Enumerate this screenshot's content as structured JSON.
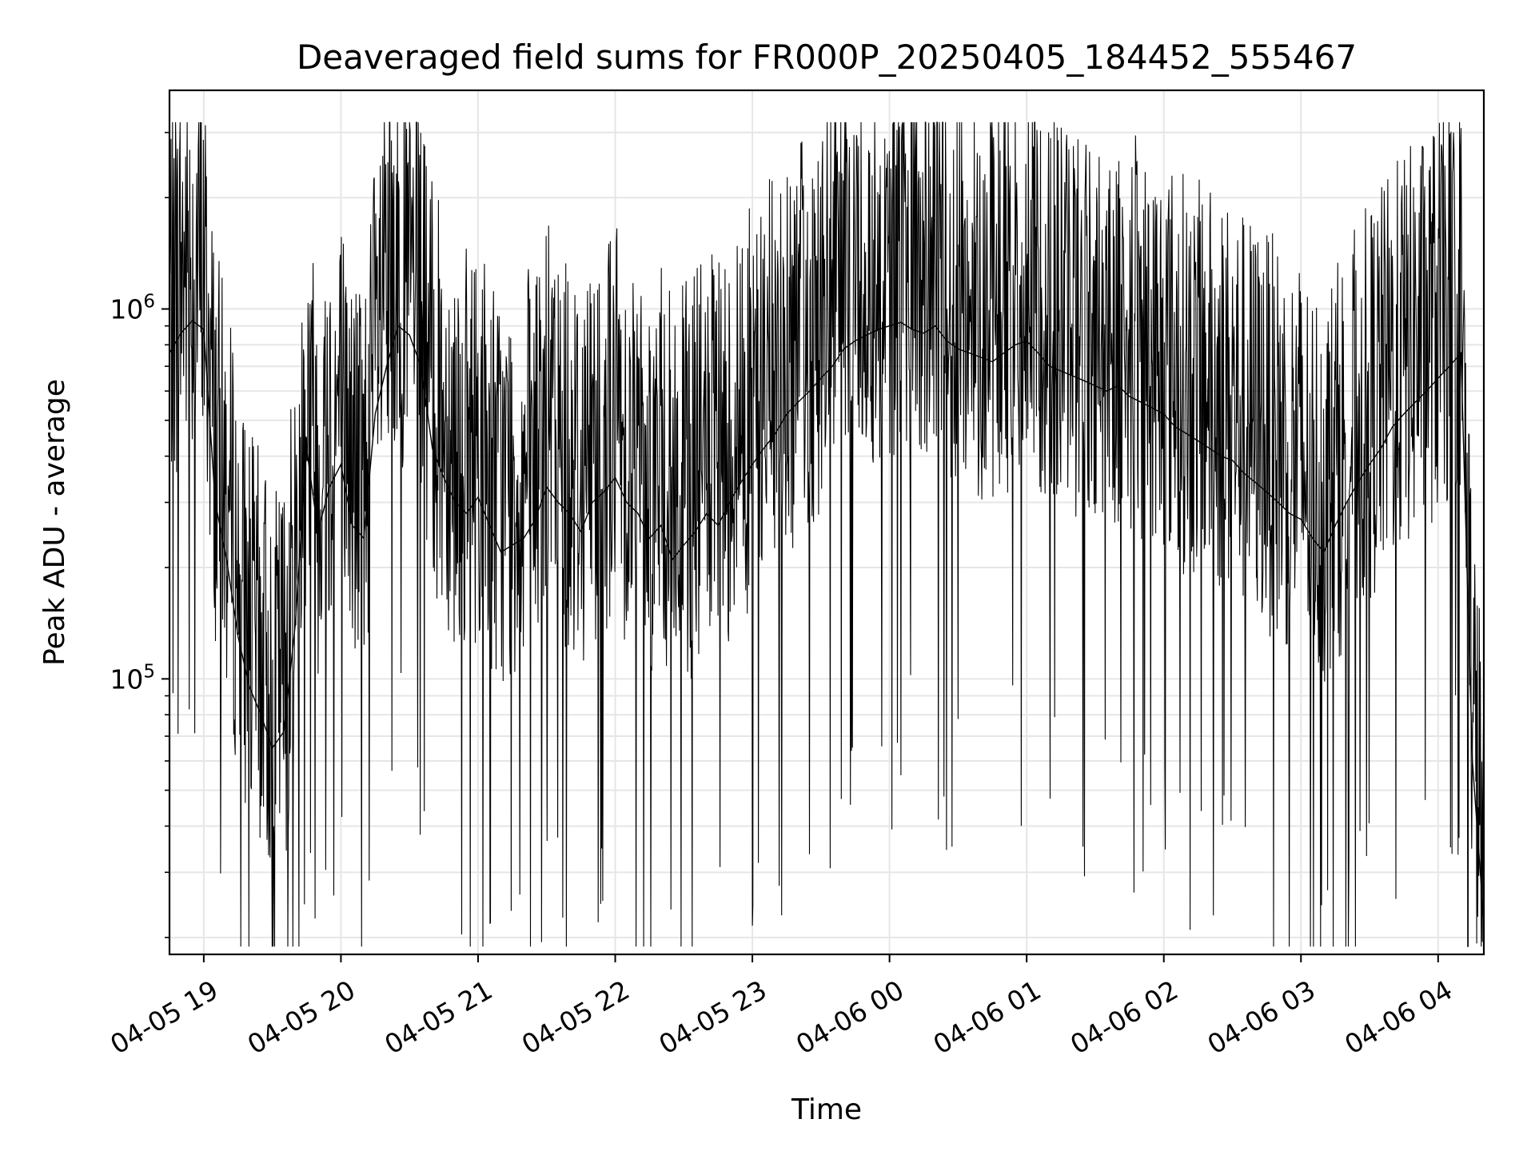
{
  "chart_data": {
    "type": "line",
    "title": "Deaveraged field sums for FR000P_20250405_184452_555467",
    "xlabel": "Time",
    "ylabel": "Peak ADU - average",
    "y_scale": "log",
    "ylim": [
      18000,
      3900000
    ],
    "xlim": [
      "2025-04-05 18:45",
      "2025-04-06 04:20"
    ],
    "grid": true,
    "line_color": "#000000",
    "grid_color": "#e6e6e6",
    "x_ticks": [
      {
        "value": "2025-04-05 19:00",
        "label": "04-05 19"
      },
      {
        "value": "2025-04-05 20:00",
        "label": "04-05 20"
      },
      {
        "value": "2025-04-05 21:00",
        "label": "04-05 21"
      },
      {
        "value": "2025-04-05 22:00",
        "label": "04-05 22"
      },
      {
        "value": "2025-04-05 23:00",
        "label": "04-05 23"
      },
      {
        "value": "2025-04-06 00:00",
        "label": "04-06 00"
      },
      {
        "value": "2025-04-06 01:00",
        "label": "04-06 01"
      },
      {
        "value": "2025-04-06 02:00",
        "label": "04-06 02"
      },
      {
        "value": "2025-04-06 03:00",
        "label": "04-06 03"
      },
      {
        "value": "2025-04-06 04:00",
        "label": "04-06 04"
      }
    ],
    "y_major_ticks": [
      {
        "value": 100000,
        "base": "10",
        "exp": "5"
      },
      {
        "value": 1000000,
        "base": "10",
        "exp": "6"
      }
    ],
    "y_minor_ticks": [
      20000,
      30000,
      40000,
      50000,
      60000,
      70000,
      80000,
      90000,
      200000,
      300000,
      400000,
      500000,
      600000,
      700000,
      800000,
      900000,
      2000000,
      3000000
    ],
    "series": [
      {
        "points": [
          [
            "2025-04-05 18:45",
            760000
          ],
          [
            "2025-04-05 18:50",
            860000
          ],
          [
            "2025-04-05 18:55",
            930000
          ],
          [
            "2025-04-05 19:00",
            880000
          ],
          [
            "2025-04-05 19:05",
            300000
          ],
          [
            "2025-04-05 19:10",
            210000
          ],
          [
            "2025-04-05 19:15",
            130000
          ],
          [
            "2025-04-05 19:20",
            95000
          ],
          [
            "2025-04-05 19:25",
            80000
          ],
          [
            "2025-04-05 19:30",
            65000
          ],
          [
            "2025-04-05 19:35",
            72000
          ],
          [
            "2025-04-05 19:40",
            140000
          ],
          [
            "2025-04-05 19:45",
            420000
          ],
          [
            "2025-04-05 19:50",
            250000
          ],
          [
            "2025-04-05 19:55",
            330000
          ],
          [
            "2025-04-05 20:00",
            380000
          ],
          [
            "2025-04-05 20:05",
            260000
          ],
          [
            "2025-04-05 20:10",
            240000
          ],
          [
            "2025-04-05 20:15",
            520000
          ],
          [
            "2025-04-05 20:20",
            700000
          ],
          [
            "2025-04-05 20:25",
            900000
          ],
          [
            "2025-04-05 20:30",
            850000
          ],
          [
            "2025-04-05 20:35",
            700000
          ],
          [
            "2025-04-05 20:40",
            420000
          ],
          [
            "2025-04-05 20:45",
            350000
          ],
          [
            "2025-04-05 20:50",
            300000
          ],
          [
            "2025-04-05 20:55",
            280000
          ],
          [
            "2025-04-05 21:00",
            310000
          ],
          [
            "2025-04-05 21:05",
            260000
          ],
          [
            "2025-04-05 21:10",
            220000
          ],
          [
            "2025-04-05 21:15",
            230000
          ],
          [
            "2025-04-05 21:20",
            240000
          ],
          [
            "2025-04-05 21:25",
            270000
          ],
          [
            "2025-04-05 21:30",
            330000
          ],
          [
            "2025-04-05 21:35",
            300000
          ],
          [
            "2025-04-05 21:40",
            280000
          ],
          [
            "2025-04-05 21:45",
            250000
          ],
          [
            "2025-04-05 21:50",
            300000
          ],
          [
            "2025-04-05 21:55",
            320000
          ],
          [
            "2025-04-05 22:00",
            350000
          ],
          [
            "2025-04-05 22:05",
            300000
          ],
          [
            "2025-04-05 22:10",
            280000
          ],
          [
            "2025-04-05 22:15",
            240000
          ],
          [
            "2025-04-05 22:20",
            260000
          ],
          [
            "2025-04-05 22:25",
            210000
          ],
          [
            "2025-04-05 22:30",
            230000
          ],
          [
            "2025-04-05 22:35",
            250000
          ],
          [
            "2025-04-05 22:40",
            280000
          ],
          [
            "2025-04-05 22:45",
            260000
          ],
          [
            "2025-04-05 22:50",
            300000
          ],
          [
            "2025-04-05 22:55",
            340000
          ],
          [
            "2025-04-05 23:00",
            380000
          ],
          [
            "2025-04-05 23:05",
            420000
          ],
          [
            "2025-04-05 23:10",
            460000
          ],
          [
            "2025-04-05 23:15",
            520000
          ],
          [
            "2025-04-05 23:20",
            560000
          ],
          [
            "2025-04-05 23:25",
            600000
          ],
          [
            "2025-04-05 23:30",
            650000
          ],
          [
            "2025-04-05 23:35",
            700000
          ],
          [
            "2025-04-05 23:40",
            780000
          ],
          [
            "2025-04-05 23:45",
            820000
          ],
          [
            "2025-04-05 23:50",
            850000
          ],
          [
            "2025-04-05 23:55",
            880000
          ],
          [
            "2025-04-06 00:00",
            900000
          ],
          [
            "2025-04-06 00:05",
            920000
          ],
          [
            "2025-04-06 00:10",
            880000
          ],
          [
            "2025-04-06 00:15",
            860000
          ],
          [
            "2025-04-06 00:20",
            900000
          ],
          [
            "2025-04-06 00:25",
            820000
          ],
          [
            "2025-04-06 00:30",
            780000
          ],
          [
            "2025-04-06 00:35",
            760000
          ],
          [
            "2025-04-06 00:40",
            740000
          ],
          [
            "2025-04-06 00:45",
            720000
          ],
          [
            "2025-04-06 00:50",
            760000
          ],
          [
            "2025-04-06 00:55",
            800000
          ],
          [
            "2025-04-06 01:00",
            820000
          ],
          [
            "2025-04-06 01:05",
            760000
          ],
          [
            "2025-04-06 01:10",
            700000
          ],
          [
            "2025-04-06 01:15",
            680000
          ],
          [
            "2025-04-06 01:20",
            660000
          ],
          [
            "2025-04-06 01:25",
            640000
          ],
          [
            "2025-04-06 01:30",
            620000
          ],
          [
            "2025-04-06 01:35",
            600000
          ],
          [
            "2025-04-06 01:40",
            620000
          ],
          [
            "2025-04-06 01:45",
            580000
          ],
          [
            "2025-04-06 01:50",
            560000
          ],
          [
            "2025-04-06 01:55",
            540000
          ],
          [
            "2025-04-06 02:00",
            520000
          ],
          [
            "2025-04-06 02:05",
            480000
          ],
          [
            "2025-04-06 02:10",
            460000
          ],
          [
            "2025-04-06 02:15",
            440000
          ],
          [
            "2025-04-06 02:20",
            420000
          ],
          [
            "2025-04-06 02:25",
            400000
          ],
          [
            "2025-04-06 02:30",
            390000
          ],
          [
            "2025-04-06 02:35",
            360000
          ],
          [
            "2025-04-06 02:40",
            340000
          ],
          [
            "2025-04-06 02:45",
            320000
          ],
          [
            "2025-04-06 02:50",
            300000
          ],
          [
            "2025-04-06 02:55",
            280000
          ],
          [
            "2025-04-06 03:00",
            270000
          ],
          [
            "2025-04-06 03:05",
            240000
          ],
          [
            "2025-04-06 03:10",
            220000
          ],
          [
            "2025-04-06 03:15",
            260000
          ],
          [
            "2025-04-06 03:20",
            300000
          ],
          [
            "2025-04-06 03:25",
            340000
          ],
          [
            "2025-04-06 03:30",
            380000
          ],
          [
            "2025-04-06 03:35",
            420000
          ],
          [
            "2025-04-06 03:40",
            480000
          ],
          [
            "2025-04-06 03:45",
            520000
          ],
          [
            "2025-04-06 03:50",
            560000
          ],
          [
            "2025-04-06 03:55",
            600000
          ],
          [
            "2025-04-06 04:00",
            650000
          ],
          [
            "2025-04-06 04:05",
            700000
          ],
          [
            "2025-04-06 04:10",
            760000
          ],
          [
            "2025-04-06 04:15",
            60000
          ],
          [
            "2025-04-06 04:20",
            22000
          ]
        ]
      }
    ]
  }
}
